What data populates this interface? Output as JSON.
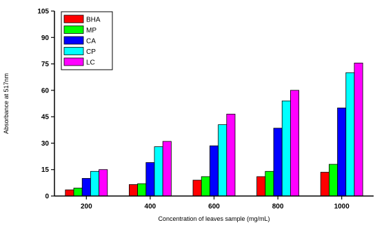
{
  "chart_data": {
    "type": "bar",
    "categories": [
      "200",
      "400",
      "600",
      "800",
      "1000"
    ],
    "series": [
      {
        "name": "BHA",
        "color": "#ff0000",
        "values": [
          3.5,
          6.5,
          9,
          11,
          13.5
        ]
      },
      {
        "name": "MP",
        "color": "#00ff00",
        "values": [
          4.5,
          7,
          11,
          14,
          18
        ]
      },
      {
        "name": "CA",
        "color": "#0000ff",
        "values": [
          10,
          19,
          28.5,
          38.5,
          50
        ]
      },
      {
        "name": "CP",
        "color": "#00ffff",
        "values": [
          14,
          28,
          40.5,
          54,
          70
        ]
      },
      {
        "name": "LC",
        "color": "#ff00ff",
        "values": [
          15,
          31,
          46.5,
          60,
          75.5
        ]
      }
    ],
    "yticks": [
      "0",
      "15",
      "30",
      "45",
      "60",
      "75",
      "90",
      "105"
    ],
    "xlabel": "Concentration of leaves sample (mg/mL)",
    "ylabel": "Absorbance at 517nm",
    "ylim": [
      0,
      105
    ],
    "grid": false,
    "legend_position": "top-left"
  }
}
